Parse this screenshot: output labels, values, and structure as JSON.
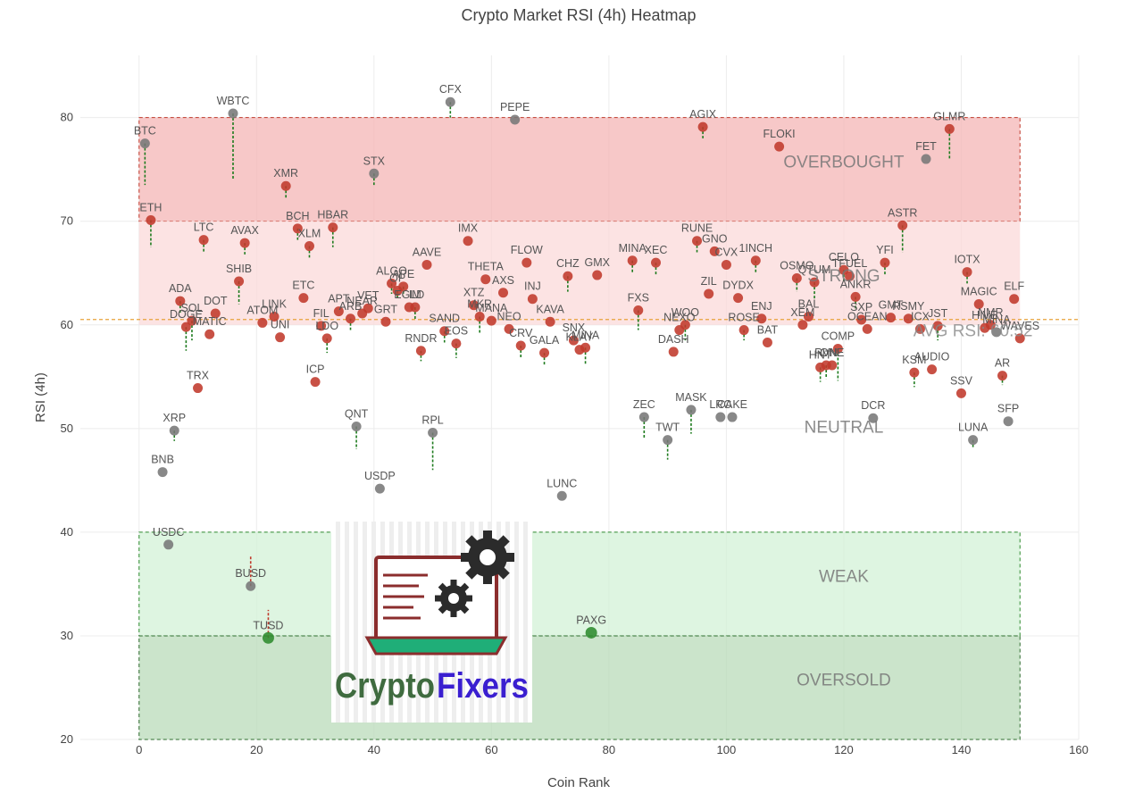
{
  "chart_data": {
    "type": "scatter",
    "title": "Crypto Market RSI (4h) Heatmap",
    "xlabel": "Coin Rank",
    "ylabel": "RSI (4h)",
    "xlim": [
      -10,
      160
    ],
    "ylim": [
      20,
      86
    ],
    "xticks": [
      0,
      20,
      40,
      60,
      80,
      100,
      120,
      140,
      160
    ],
    "yticks": [
      20,
      30,
      40,
      50,
      60,
      70,
      80
    ],
    "grid": true,
    "zones": [
      {
        "name": "OVERBOUGHT",
        "y0": 70,
        "y1": 80,
        "color": "#f4b6b6"
      },
      {
        "name": "STRONG",
        "y0": 60,
        "y1": 70,
        "color": "#fbdada"
      },
      {
        "name": "NEUTRAL",
        "y0": 40,
        "y1": 60,
        "color": "#ffffff"
      },
      {
        "name": "WEAK",
        "y0": 30,
        "y1": 40,
        "color": "#d3f2d7"
      },
      {
        "name": "OVERSOLD",
        "y0": 20,
        "y1": 30,
        "color": "#b9dbb9"
      }
    ],
    "zone_x_range": [
      0,
      150
    ],
    "average": {
      "label": "AVG RSI: 60.52",
      "value": 60.52,
      "color": "#e8a33a"
    },
    "colors": {
      "overbought_strong": "#c0392b",
      "neutral": "#777777",
      "oversold": "#2e8b2e"
    },
    "points": [
      {
        "name": "BTC",
        "x": 1,
        "y": 77.5,
        "prev": 73.5
      },
      {
        "name": "ETH",
        "x": 2,
        "y": 70.1,
        "prev": 67.5
      },
      {
        "name": "BNB",
        "x": 4,
        "y": 45.8,
        "prev": 45.8
      },
      {
        "name": "USDC",
        "x": 5,
        "y": 38.8,
        "prev": 38.8
      },
      {
        "name": "XRP",
        "x": 6,
        "y": 49.8,
        "prev": 48.8
      },
      {
        "name": "ADA",
        "x": 7,
        "y": 62.3,
        "prev": 61.0
      },
      {
        "name": "DOGE",
        "x": 8,
        "y": 59.8,
        "prev": 57.5
      },
      {
        "name": "SOL",
        "x": 9,
        "y": 60.4,
        "prev": 58.5
      },
      {
        "name": "TRX",
        "x": 10,
        "y": 53.9,
        "prev": 53.9
      },
      {
        "name": "MATIC",
        "x": 12,
        "y": 59.1,
        "prev": 59.1
      },
      {
        "name": "DOT",
        "x": 13,
        "y": 61.1,
        "prev": 61.1
      },
      {
        "name": "LTC",
        "x": 11,
        "y": 68.2,
        "prev": 67.0
      },
      {
        "name": "WBTC",
        "x": 16,
        "y": 80.4,
        "prev": 74.0
      },
      {
        "name": "SHIB",
        "x": 17,
        "y": 64.2,
        "prev": 62.0
      },
      {
        "name": "AVAX",
        "x": 18,
        "y": 67.9,
        "prev": 66.8
      },
      {
        "name": "BUSD",
        "x": 19,
        "y": 34.8,
        "prev": 37.8
      },
      {
        "name": "ATOM",
        "x": 21,
        "y": 60.2,
        "prev": 60.2
      },
      {
        "name": "TUSD",
        "x": 22,
        "y": 29.8,
        "prev": 32.5
      },
      {
        "name": "LINK",
        "x": 23,
        "y": 60.8,
        "prev": 60.8
      },
      {
        "name": "UNI",
        "x": 24,
        "y": 58.8,
        "prev": 58.8
      },
      {
        "name": "XMR",
        "x": 25,
        "y": 73.4,
        "prev": 72.2
      },
      {
        "name": "ETC",
        "x": 28,
        "y": 62.6,
        "prev": 62.6
      },
      {
        "name": "BCH",
        "x": 27,
        "y": 69.3,
        "prev": 68.2
      },
      {
        "name": "XLM",
        "x": 29,
        "y": 67.6,
        "prev": 66.5
      },
      {
        "name": "ICP",
        "x": 30,
        "y": 54.5,
        "prev": 54.5
      },
      {
        "name": "FIL",
        "x": 31,
        "y": 59.9,
        "prev": 59.9
      },
      {
        "name": "LDO",
        "x": 32,
        "y": 58.7,
        "prev": 57.3
      },
      {
        "name": "HBAR",
        "x": 33,
        "y": 69.4,
        "prev": 67.5
      },
      {
        "name": "APT",
        "x": 34,
        "y": 61.3,
        "prev": 61.3
      },
      {
        "name": "ARB",
        "x": 36,
        "y": 60.6,
        "prev": 59.5
      },
      {
        "name": "QNT",
        "x": 37,
        "y": 50.2,
        "prev": 48.0
      },
      {
        "name": "NEAR",
        "x": 38,
        "y": 61.1,
        "prev": 61.1
      },
      {
        "name": "VET",
        "x": 39,
        "y": 61.6,
        "prev": 61.6
      },
      {
        "name": "STX",
        "x": 40,
        "y": 74.6,
        "prev": 73.5
      },
      {
        "name": "USDP",
        "x": 41,
        "y": 44.2,
        "prev": 44.2
      },
      {
        "name": "GRT",
        "x": 42,
        "y": 60.3,
        "prev": 60.3
      },
      {
        "name": "ALGO",
        "x": 43,
        "y": 64.0,
        "prev": 63.0
      },
      {
        "name": "OP",
        "x": 44,
        "y": 63.3,
        "prev": 62.5
      },
      {
        "name": "APE",
        "x": 45,
        "y": 63.7,
        "prev": 62.8
      },
      {
        "name": "EGLD",
        "x": 46,
        "y": 61.7,
        "prev": 61.7
      },
      {
        "name": "IM",
        "x": 47,
        "y": 61.7,
        "prev": 60.5
      },
      {
        "name": "RNDR",
        "x": 48,
        "y": 57.5,
        "prev": 56.5
      },
      {
        "name": "AAVE",
        "x": 49,
        "y": 65.8,
        "prev": 65.8
      },
      {
        "name": "RPL",
        "x": 50,
        "y": 49.6,
        "prev": 46.0
      },
      {
        "name": "CFX",
        "x": 53,
        "y": 81.5,
        "prev": 80.0
      },
      {
        "name": "SAND",
        "x": 52,
        "y": 59.4,
        "prev": 58.3
      },
      {
        "name": "EOS",
        "x": 54,
        "y": 58.2,
        "prev": 56.8
      },
      {
        "name": "IMX",
        "x": 56,
        "y": 68.1,
        "prev": 68.1
      },
      {
        "name": "XTZ",
        "x": 57,
        "y": 61.9,
        "prev": 61.9
      },
      {
        "name": "MKR",
        "x": 58,
        "y": 60.8,
        "prev": 59.2
      },
      {
        "name": "THETA",
        "x": 59,
        "y": 64.4,
        "prev": 64.4
      },
      {
        "name": "MANA",
        "x": 60,
        "y": 60.4,
        "prev": 60.4
      },
      {
        "name": "NEO",
        "x": 63,
        "y": 59.6,
        "prev": 59.6
      },
      {
        "name": "AXS",
        "x": 62,
        "y": 63.1,
        "prev": 63.1
      },
      {
        "name": "PEPE",
        "x": 64,
        "y": 79.8,
        "prev": 79.8
      },
      {
        "name": "CRV",
        "x": 65,
        "y": 58.0,
        "prev": 56.8
      },
      {
        "name": "FLOW",
        "x": 66,
        "y": 66.0,
        "prev": 66.0
      },
      {
        "name": "INJ",
        "x": 67,
        "y": 62.5,
        "prev": 62.5
      },
      {
        "name": "GALA",
        "x": 69,
        "y": 57.3,
        "prev": 56.0
      },
      {
        "name": "KAVA",
        "x": 70,
        "y": 60.3,
        "prev": 60.3
      },
      {
        "name": "LUNC",
        "x": 72,
        "y": 43.5,
        "prev": 43.5
      },
      {
        "name": "CHZ",
        "x": 73,
        "y": 64.7,
        "prev": 63.2
      },
      {
        "name": "SNX",
        "x": 74,
        "y": 58.5,
        "prev": 58.5
      },
      {
        "name": "KLAY",
        "x": 75,
        "y": 57.6,
        "prev": 57.6
      },
      {
        "name": "MINA",
        "x": 76,
        "y": 57.8,
        "prev": 56.2
      },
      {
        "name": "PAXG",
        "x": 77,
        "y": 30.3,
        "prev": 30.3
      },
      {
        "name": "GMX",
        "x": 78,
        "y": 64.8,
        "prev": 64.8
      },
      {
        "name": "MINA",
        "x": 84,
        "y": 66.2,
        "prev": 65.0
      },
      {
        "name": "FXS",
        "x": 85,
        "y": 61.4,
        "prev": 59.5
      },
      {
        "name": "ZEC",
        "x": 86,
        "y": 51.1,
        "prev": 49.0
      },
      {
        "name": "XEC",
        "x": 88,
        "y": 66.0,
        "prev": 64.8
      },
      {
        "name": "TWT",
        "x": 90,
        "y": 48.9,
        "prev": 47.0
      },
      {
        "name": "DASH",
        "x": 91,
        "y": 57.4,
        "prev": 57.4
      },
      {
        "name": "NEXO",
        "x": 92,
        "y": 59.5,
        "prev": 59.5
      },
      {
        "name": "WOO",
        "x": 93,
        "y": 60.0,
        "prev": 58.5
      },
      {
        "name": "MASK",
        "x": 94,
        "y": 51.8,
        "prev": 49.5
      },
      {
        "name": "ZIL",
        "x": 97,
        "y": 63.0,
        "prev": 63.0
      },
      {
        "name": "RUNE",
        "x": 95,
        "y": 68.1,
        "prev": 67.0
      },
      {
        "name": "AGIX",
        "x": 96,
        "y": 79.1,
        "prev": 78.0
      },
      {
        "name": "GNO",
        "x": 98,
        "y": 67.1,
        "prev": 67.1
      },
      {
        "name": "LRC",
        "x": 99,
        "y": 51.1,
        "prev": 51.1
      },
      {
        "name": "CVX",
        "x": 100,
        "y": 65.8,
        "prev": 65.8
      },
      {
        "name": "CAKE",
        "x": 101,
        "y": 51.1,
        "prev": 51.1
      },
      {
        "name": "DYDX",
        "x": 102,
        "y": 62.6,
        "prev": 62.6
      },
      {
        "name": "ROSE",
        "x": 103,
        "y": 59.5,
        "prev": 58.5
      },
      {
        "name": "1INCH",
        "x": 105,
        "y": 66.2,
        "prev": 65.0
      },
      {
        "name": "ENJ",
        "x": 106,
        "y": 60.6,
        "prev": 60.6
      },
      {
        "name": "BAT",
        "x": 107,
        "y": 58.3,
        "prev": 58.3
      },
      {
        "name": "FLOKI",
        "x": 109,
        "y": 77.2,
        "prev": 77.2
      },
      {
        "name": "OSMO",
        "x": 112,
        "y": 64.5,
        "prev": 63.2
      },
      {
        "name": "XEM",
        "x": 113,
        "y": 60.0,
        "prev": 60.0
      },
      {
        "name": "BAL",
        "x": 114,
        "y": 60.8,
        "prev": 60.8
      },
      {
        "name": "QTUM",
        "x": 115,
        "y": 64.1,
        "prev": 62.5
      },
      {
        "name": "HNT",
        "x": 116,
        "y": 55.9,
        "prev": 54.5
      },
      {
        "name": "RVN",
        "x": 117,
        "y": 56.1,
        "prev": 54.8
      },
      {
        "name": "ONE",
        "x": 118,
        "y": 56.1,
        "prev": 56.1
      },
      {
        "name": "COMP",
        "x": 119,
        "y": 57.7,
        "prev": 54.6
      },
      {
        "name": "CELO",
        "x": 120,
        "y": 65.3,
        "prev": 64.2
      },
      {
        "name": "TFUEL",
        "x": 121,
        "y": 64.7,
        "prev": 64.7
      },
      {
        "name": "ANKR",
        "x": 122,
        "y": 62.7,
        "prev": 61.5
      },
      {
        "name": "SXP",
        "x": 123,
        "y": 60.5,
        "prev": 60.5
      },
      {
        "name": "OCEAN",
        "x": 124,
        "y": 59.6,
        "prev": 59.6
      },
      {
        "name": "DCR",
        "x": 125,
        "y": 51.0,
        "prev": 51.0
      },
      {
        "name": "YFI",
        "x": 127,
        "y": 66.0,
        "prev": 64.8
      },
      {
        "name": "GMT",
        "x": 128,
        "y": 60.7,
        "prev": 60.7
      },
      {
        "name": "ASTR",
        "x": 130,
        "y": 69.6,
        "prev": 67.0
      },
      {
        "name": "GLMR",
        "x": 138,
        "y": 78.9,
        "prev": 76.0
      },
      {
        "name": "FET",
        "x": 134,
        "y": 76.0,
        "prev": 76.0
      },
      {
        "name": "AUDIO",
        "x": 135,
        "y": 55.7,
        "prev": 55.7
      },
      {
        "name": "KSM",
        "x": 132,
        "y": 55.4,
        "prev": 54.0
      },
      {
        "name": "ICX",
        "x": 133,
        "y": 59.6,
        "prev": 59.6
      },
      {
        "name": "RSMY",
        "x": 131,
        "y": 60.6,
        "prev": 60.6
      },
      {
        "name": "JST",
        "x": 136,
        "y": 59.9,
        "prev": 58.5
      },
      {
        "name": "SSV",
        "x": 140,
        "y": 53.4,
        "prev": 53.4
      },
      {
        "name": "IOTX",
        "x": 141,
        "y": 65.1,
        "prev": 64.0
      },
      {
        "name": "LUNA",
        "x": 142,
        "y": 48.9,
        "prev": 48.2
      },
      {
        "name": "MAGIC",
        "x": 143,
        "y": 62.0,
        "prev": 62.0
      },
      {
        "name": "HIVE",
        "x": 144,
        "y": 59.7,
        "prev": 59.7
      },
      {
        "name": "NMR",
        "x": 145,
        "y": 60.0,
        "prev": 60.0
      },
      {
        "name": "MINA",
        "x": 146,
        "y": 59.3,
        "prev": 59.3
      },
      {
        "name": "AR",
        "x": 147,
        "y": 55.1,
        "prev": 54.2
      },
      {
        "name": "SFP",
        "x": 148,
        "y": 50.7,
        "prev": 50.7
      },
      {
        "name": "ELF",
        "x": 149,
        "y": 62.5,
        "prev": 62.5
      },
      {
        "name": "WAVES",
        "x": 150,
        "y": 58.7,
        "prev": 58.7
      }
    ]
  },
  "logo": {
    "name": "CryptoFixers",
    "word_a": "Crypto",
    "word_b": "Fixers"
  }
}
